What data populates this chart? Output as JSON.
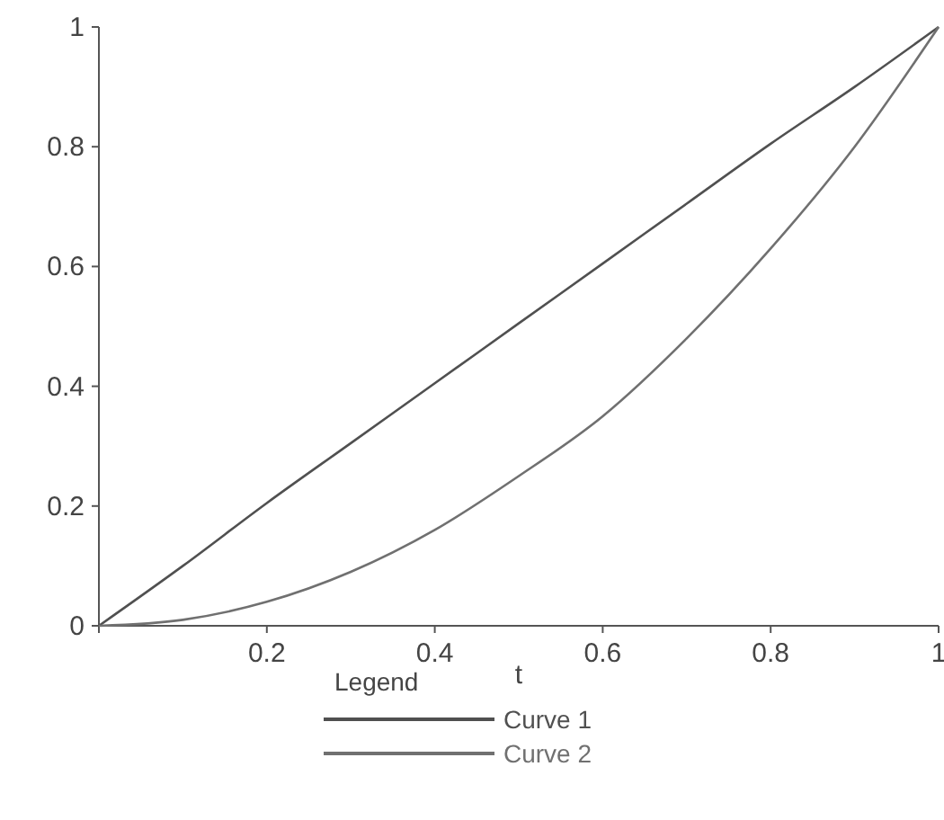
{
  "chart_data": {
    "type": "line",
    "xlabel": "t",
    "legend_title": "Legend",
    "legend": "bottom",
    "x": [
      0,
      0.1,
      0.2,
      0.3,
      0.4,
      0.5,
      0.6,
      0.7,
      0.8,
      0.9,
      1
    ],
    "series": [
      {
        "name": "Curve 1",
        "color": "#505050",
        "values": [
          0,
          0.1,
          0.205,
          0.305,
          0.405,
          0.505,
          0.605,
          0.705,
          0.805,
          0.9,
          1
        ]
      },
      {
        "name": "Curve 2",
        "color": "#707070",
        "values": [
          0,
          0.01,
          0.04,
          0.09,
          0.16,
          0.25,
          0.35,
          0.48,
          0.63,
          0.8,
          1
        ]
      }
    ],
    "xlim": [
      0,
      1
    ],
    "ylim": [
      0,
      1
    ],
    "xticks": [
      {
        "value": 0,
        "label": null
      },
      0.2,
      0.4,
      0.6,
      0.8,
      1
    ],
    "yticks": [
      0,
      0.2,
      0.4,
      0.6,
      0.8,
      1
    ],
    "grid": false,
    "line_style": "solid"
  }
}
